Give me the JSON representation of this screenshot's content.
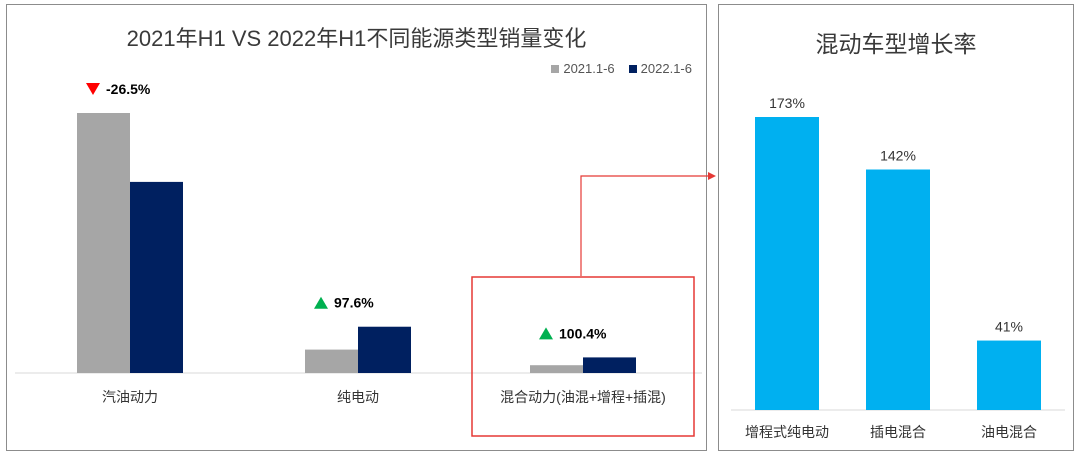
{
  "chart_data": [
    {
      "type": "bar",
      "title": "2021年H1 VS 2022年H1不同能源类型销量变化",
      "categories": [
        "汽油动力",
        "纯电动",
        "混合动力(油混+增程+插混)"
      ],
      "series": [
        {
          "name": "2021.1-6",
          "color": "#a6a6a6",
          "values": [
            100,
            9,
            3
          ]
        },
        {
          "name": "2022.1-6",
          "color": "#002060",
          "values": [
            73.5,
            17.8,
            6
          ]
        }
      ],
      "annotations": [
        {
          "text": "-26.5%",
          "direction": "down",
          "color": "#ff0000"
        },
        {
          "text": "97.6%",
          "direction": "up",
          "color": "#00b050"
        },
        {
          "text": "100.4%",
          "direction": "up",
          "color": "#00b050"
        }
      ],
      "legend_position": "top-right",
      "ylim": [
        0,
        100
      ]
    },
    {
      "type": "bar",
      "title": "混动车型增长率",
      "categories": [
        "增程式纯电动",
        "插电混合",
        "油电混合"
      ],
      "values": [
        173,
        142,
        41
      ],
      "value_labels": [
        "173%",
        "142%",
        "41%"
      ],
      "color": "#00b0f0",
      "ylim": [
        0,
        173
      ]
    }
  ],
  "highlight_color": "#e53935"
}
